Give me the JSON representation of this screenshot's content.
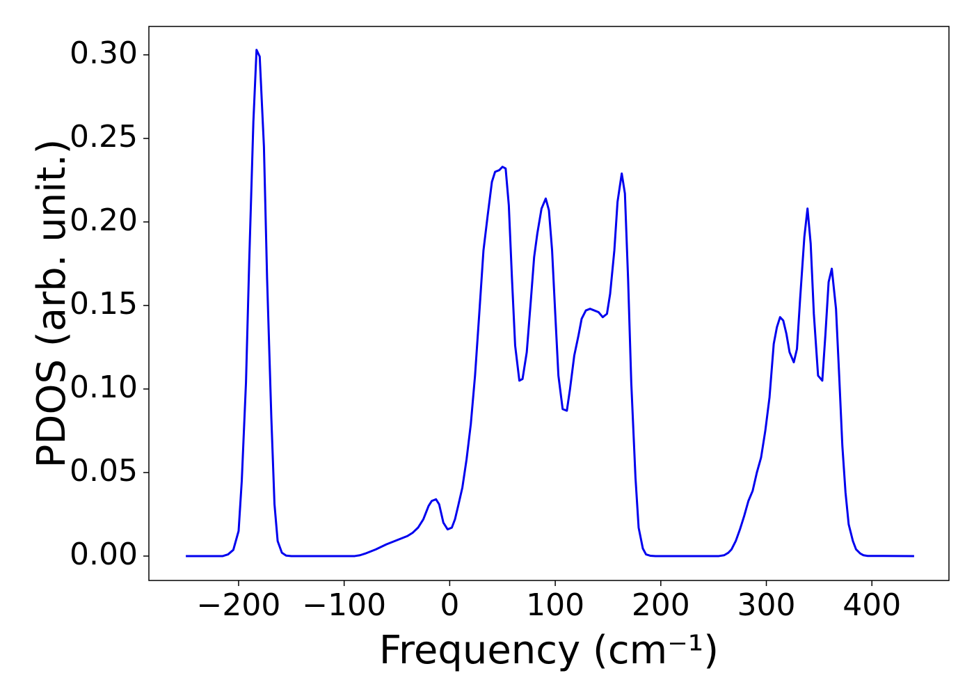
{
  "chart_data": {
    "type": "line",
    "x_label": "Frequency (cm⁻¹)",
    "y_label": "PDOS (arb. unit.)",
    "xlim": [
      -285,
      473
    ],
    "ylim": [
      -0.0146,
      0.317
    ],
    "xticks": [
      {
        "value": -200,
        "label": "−200"
      },
      {
        "value": -100,
        "label": "−100"
      },
      0,
      100,
      200,
      300,
      400
    ],
    "yticks": [
      {
        "value": 0,
        "label": "0.00"
      },
      {
        "value": 0.05,
        "label": "0.05"
      },
      {
        "value": 0.1,
        "label": "0.10"
      },
      {
        "value": 0.15,
        "label": "0.15"
      },
      {
        "value": 0.2,
        "label": "0.20"
      },
      {
        "value": 0.25,
        "label": "0.25"
      },
      {
        "value": 0.3,
        "label": "0.30"
      }
    ],
    "grid": false,
    "series": [
      {
        "color": "#0000ee",
        "x": [
          -250,
          -215,
          -210,
          -205,
          -200,
          -197,
          -193,
          -190,
          -186,
          -183,
          -180,
          -176,
          -173,
          -169,
          -166,
          -163,
          -159,
          -155,
          -150,
          -90,
          -85,
          -80,
          -70,
          -60,
          -50,
          -40,
          -35,
          -30,
          -25,
          -20,
          -17,
          -13,
          -10,
          -6,
          -2,
          2,
          5,
          8,
          12,
          16,
          20,
          24,
          28,
          32,
          36,
          40,
          43,
          47,
          50,
          53,
          56,
          59,
          62,
          66,
          69,
          73,
          77,
          80,
          83,
          87,
          91,
          94,
          97,
          100,
          103,
          107,
          111,
          114,
          118,
          122,
          125,
          129,
          133,
          137,
          141,
          145,
          149,
          152,
          156,
          159,
          163,
          166,
          169,
          172,
          176,
          179,
          183,
          186,
          190,
          195,
          255,
          260,
          264,
          267,
          271,
          275,
          279,
          283,
          287,
          291,
          295,
          299,
          303,
          307,
          310,
          313,
          316,
          319,
          322,
          326,
          329,
          332,
          336,
          339,
          342,
          345,
          349,
          353,
          356,
          359,
          362,
          366,
          369,
          372,
          375,
          378,
          382,
          385,
          389,
          392,
          396,
          440
        ],
        "values": [
          0,
          0,
          0.001,
          0.0037,
          0.015,
          0.045,
          0.104,
          0.175,
          0.26,
          0.303,
          0.299,
          0.245,
          0.166,
          0.083,
          0.031,
          0.009,
          0.002,
          0.0003,
          0,
          0,
          0.0005,
          0.0015,
          0.004,
          0.007,
          0.0095,
          0.012,
          0.014,
          0.017,
          0.022,
          0.03,
          0.033,
          0.034,
          0.031,
          0.02,
          0.016,
          0.017,
          0.022,
          0.03,
          0.041,
          0.058,
          0.079,
          0.108,
          0.145,
          0.183,
          0.204,
          0.224,
          0.23,
          0.231,
          0.233,
          0.232,
          0.21,
          0.166,
          0.126,
          0.105,
          0.106,
          0.122,
          0.154,
          0.179,
          0.193,
          0.208,
          0.214,
          0.207,
          0.183,
          0.145,
          0.108,
          0.088,
          0.087,
          0.1,
          0.12,
          0.132,
          0.142,
          0.147,
          0.148,
          0.147,
          0.146,
          0.143,
          0.145,
          0.157,
          0.183,
          0.212,
          0.229,
          0.217,
          0.166,
          0.104,
          0.047,
          0.017,
          0.0045,
          0.001,
          0.0002,
          0,
          0,
          0.0005,
          0.002,
          0.004,
          0.009,
          0.016,
          0.024,
          0.033,
          0.039,
          0.05,
          0.059,
          0.075,
          0.095,
          0.127,
          0.137,
          0.143,
          0.141,
          0.133,
          0.122,
          0.116,
          0.124,
          0.154,
          0.191,
          0.208,
          0.187,
          0.145,
          0.108,
          0.105,
          0.133,
          0.164,
          0.172,
          0.148,
          0.108,
          0.066,
          0.038,
          0.019,
          0.009,
          0.004,
          0.0015,
          0.0005,
          0.0001,
          0
        ]
      }
    ]
  }
}
